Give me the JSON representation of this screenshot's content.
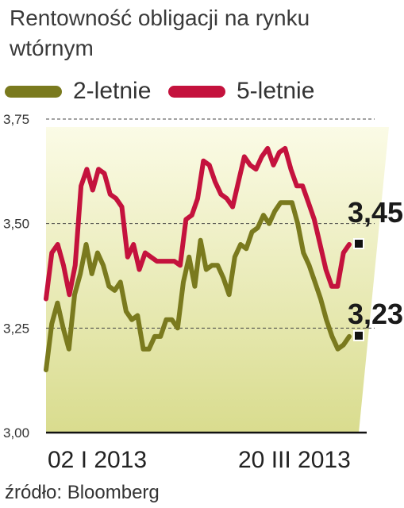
{
  "chart_data": {
    "type": "line",
    "title": "Rentowność obligacji na rynku wtórnym",
    "source": "źródło: Bloomberg",
    "y_ticks": [
      "3,75",
      "3,50",
      "3,25",
      "3,00"
    ],
    "ylim": [
      3.0,
      3.75
    ],
    "x_ticks": [
      "02 I 2013",
      "20 III 2013"
    ],
    "end_labels": [
      "3,45",
      "3,23"
    ],
    "grid": true,
    "legend_position": "top",
    "series": [
      {
        "name": "2-letnie",
        "color": "#7a7a1e",
        "values": [
          3.15,
          3.26,
          3.31,
          3.25,
          3.2,
          3.33,
          3.38,
          3.45,
          3.38,
          3.43,
          3.4,
          3.35,
          3.34,
          3.36,
          3.29,
          3.27,
          3.28,
          3.2,
          3.2,
          3.23,
          3.23,
          3.27,
          3.27,
          3.25,
          3.36,
          3.42,
          3.35,
          3.46,
          3.39,
          3.4,
          3.4,
          3.37,
          3.33,
          3.42,
          3.45,
          3.44,
          3.48,
          3.49,
          3.52,
          3.5,
          3.53,
          3.55,
          3.55,
          3.55,
          3.5,
          3.43,
          3.4,
          3.36,
          3.32,
          3.27,
          3.23,
          3.2,
          3.21,
          3.23
        ]
      },
      {
        "name": "5-letnie",
        "color": "#c4123d",
        "values": [
          3.32,
          3.43,
          3.45,
          3.4,
          3.33,
          3.4,
          3.59,
          3.63,
          3.58,
          3.63,
          3.62,
          3.57,
          3.56,
          3.54,
          3.42,
          3.45,
          3.39,
          3.43,
          3.42,
          3.41,
          3.41,
          3.41,
          3.41,
          3.4,
          3.51,
          3.52,
          3.56,
          3.65,
          3.64,
          3.6,
          3.57,
          3.56,
          3.54,
          3.6,
          3.66,
          3.64,
          3.63,
          3.66,
          3.68,
          3.64,
          3.67,
          3.68,
          3.63,
          3.59,
          3.59,
          3.55,
          3.51,
          3.45,
          3.39,
          3.35,
          3.35,
          3.43,
          3.45
        ]
      }
    ]
  }
}
